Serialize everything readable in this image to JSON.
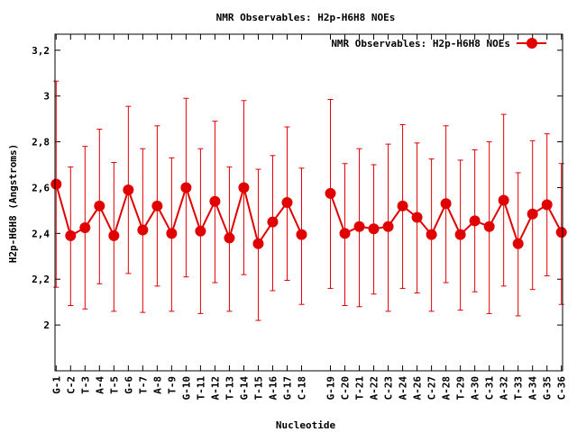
{
  "chart_data": {
    "type": "line",
    "title": "NMR Observables: H2p-H6H8 NOEs",
    "xlabel": "Nucleotide",
    "ylabel": "H2p-H6H8 (Angstroms)",
    "ylim": [
      1.8,
      3.27
    ],
    "y_ticks": [
      2,
      2.2,
      2.4,
      2.6,
      2.8,
      3,
      3.2
    ],
    "y_tick_labels": [
      "2",
      "2,2",
      "2,4",
      "2,6",
      "2,8",
      "3",
      "3,2"
    ],
    "grid": false,
    "legend_position": "top-right",
    "color": "#e00000",
    "categories": [
      "G-1",
      "C-2",
      "T-3",
      "A-4",
      "T-5",
      "G-6",
      "T-7",
      "A-8",
      "T-9",
      "G-10",
      "T-11",
      "A-12",
      "T-13",
      "G-14",
      "T-15",
      "A-16",
      "G-17",
      "C-18",
      "G-19",
      "C-20",
      "T-21",
      "A-22",
      "C-23",
      "A-24",
      "A-26",
      "C-27",
      "A-28",
      "T-29",
      "A-30",
      "C-31",
      "A-32",
      "T-33",
      "A-34",
      "G-35",
      "C-36"
    ],
    "x_index": [
      1,
      2,
      3,
      4,
      5,
      6,
      7,
      8,
      9,
      10,
      11,
      12,
      13,
      14,
      15,
      16,
      17,
      18,
      20,
      21,
      22,
      23,
      24,
      25,
      26,
      27,
      28,
      29,
      30,
      31,
      32,
      33,
      34,
      35,
      36
    ],
    "segments": [
      [
        0,
        17
      ],
      [
        18,
        34
      ]
    ],
    "series": [
      {
        "name": "NMR Observables: H2p-H6H8 NOEs",
        "values": [
          2.615,
          2.39,
          2.425,
          2.52,
          2.39,
          2.59,
          2.415,
          2.52,
          2.4,
          2.6,
          2.41,
          2.54,
          2.38,
          2.6,
          2.355,
          2.45,
          2.535,
          2.395,
          2.575,
          2.4,
          2.43,
          2.42,
          2.43,
          2.52,
          2.47,
          2.395,
          2.53,
          2.395,
          2.455,
          2.43,
          2.545,
          2.355,
          2.485,
          2.525,
          2.405
        ],
        "err_low": [
          2.165,
          2.085,
          2.07,
          2.18,
          2.06,
          2.225,
          2.055,
          2.17,
          2.06,
          2.21,
          2.05,
          2.185,
          2.06,
          2.22,
          2.02,
          2.15,
          2.195,
          2.09,
          2.16,
          2.085,
          2.08,
          2.135,
          2.06,
          2.16,
          2.14,
          2.06,
          2.185,
          2.065,
          2.145,
          2.05,
          2.17,
          2.04,
          2.155,
          2.215,
          2.09
        ],
        "err_high": [
          3.065,
          2.69,
          2.78,
          2.855,
          2.71,
          2.955,
          2.77,
          2.87,
          2.73,
          2.99,
          2.77,
          2.89,
          2.69,
          2.98,
          2.68,
          2.74,
          2.865,
          2.685,
          2.985,
          2.705,
          2.77,
          2.7,
          2.79,
          2.875,
          2.795,
          2.725,
          2.87,
          2.72,
          2.765,
          2.8,
          2.92,
          2.665,
          2.805,
          2.835,
          2.705
        ]
      }
    ]
  }
}
